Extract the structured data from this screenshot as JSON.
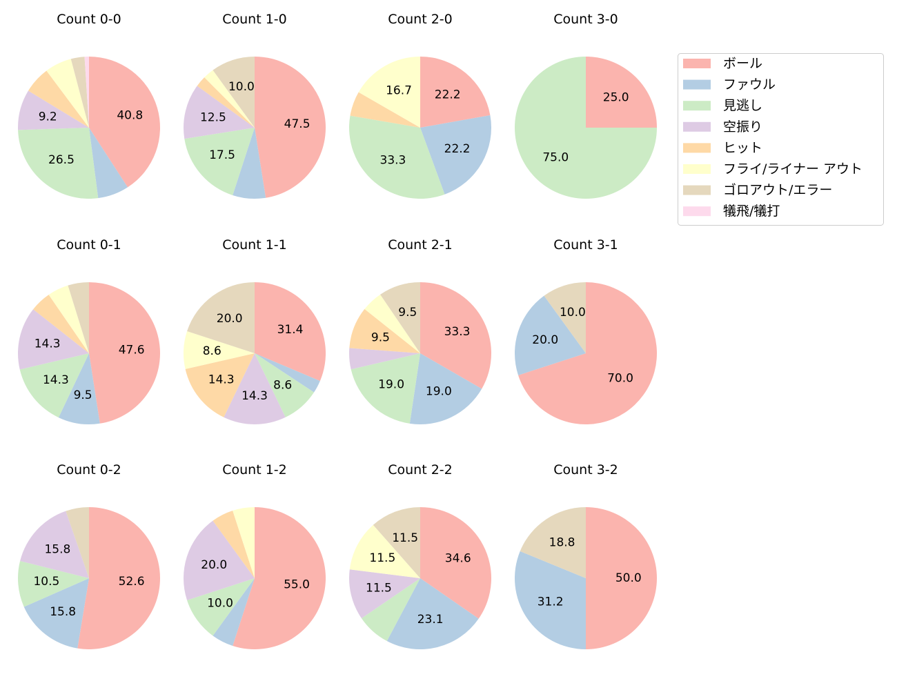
{
  "chart_data": [
    {
      "type": "pie",
      "title": "Count 0-0",
      "values": [
        40.8,
        7.1,
        26.5,
        9.2,
        6.1,
        6.1,
        3.1,
        1.0
      ]
    },
    {
      "type": "pie",
      "title": "Count 1-0",
      "values": [
        47.5,
        7.5,
        17.5,
        12.5,
        2.5,
        2.5,
        10.0,
        0
      ]
    },
    {
      "type": "pie",
      "title": "Count 2-0",
      "values": [
        22.2,
        22.2,
        33.3,
        0,
        5.6,
        16.7,
        0,
        0
      ]
    },
    {
      "type": "pie",
      "title": "Count 3-0",
      "values": [
        25.0,
        0,
        75.0,
        0,
        0,
        0,
        0,
        0
      ]
    },
    {
      "type": "pie",
      "title": "Count 0-1",
      "values": [
        47.6,
        9.5,
        14.3,
        14.3,
        4.8,
        4.8,
        4.8,
        0
      ]
    },
    {
      "type": "pie",
      "title": "Count 1-1",
      "values": [
        31.4,
        2.9,
        8.6,
        14.3,
        14.3,
        8.6,
        20.0,
        0
      ]
    },
    {
      "type": "pie",
      "title": "Count 2-1",
      "values": [
        33.3,
        19.0,
        19.0,
        4.8,
        9.5,
        4.8,
        9.5,
        0
      ]
    },
    {
      "type": "pie",
      "title": "Count 3-1",
      "values": [
        70.0,
        20.0,
        0,
        0,
        0,
        0,
        10.0,
        0
      ]
    },
    {
      "type": "pie",
      "title": "Count 0-2",
      "values": [
        52.6,
        15.8,
        10.5,
        15.8,
        0,
        0,
        5.3,
        0
      ]
    },
    {
      "type": "pie",
      "title": "Count 1-2",
      "values": [
        55.0,
        5.0,
        10.0,
        20.0,
        5.0,
        5.0,
        0,
        0
      ]
    },
    {
      "type": "pie",
      "title": "Count 2-2",
      "values": [
        34.6,
        23.1,
        7.7,
        11.5,
        0,
        11.5,
        11.5,
        0
      ]
    },
    {
      "type": "pie",
      "title": "Count 3-2",
      "values": [
        50.0,
        31.2,
        0,
        0,
        0,
        0,
        18.8,
        0
      ]
    }
  ],
  "categories": [
    "ボール",
    "ファウル",
    "見逃し",
    "空振り",
    "ヒット",
    "フライ/ライナー アウト",
    "ゴロアウト/エラー",
    "犠飛/犠打"
  ],
  "colors": [
    "#fbb4ae",
    "#b3cde3",
    "#ccebc5",
    "#decbe4",
    "#fed9a6",
    "#ffffcc",
    "#e5d8bd",
    "#fddaec"
  ],
  "legend_position": "right",
  "start_angle": "top",
  "direction": "clockwise",
  "label_min_percent": 8
}
